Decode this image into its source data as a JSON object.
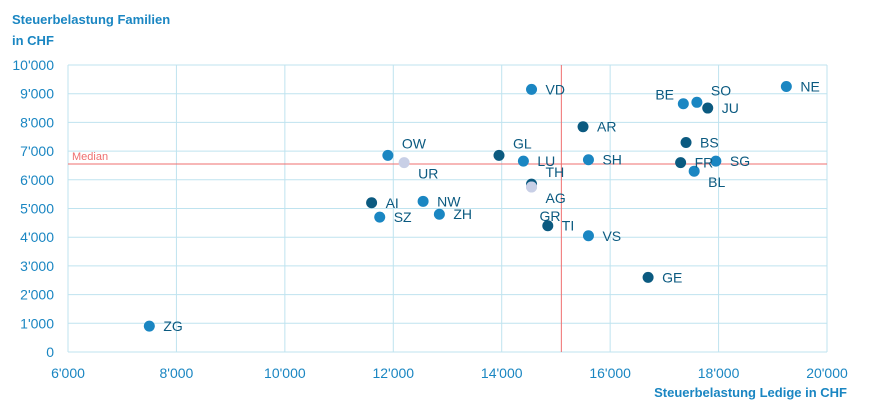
{
  "chart_data": {
    "type": "scatter",
    "title": "",
    "ylabel_lines": [
      "Steuerbelastung Familien",
      "in CHF"
    ],
    "xlabel": "Steuerbelastung Ledige in CHF",
    "xlim": [
      6000,
      20000
    ],
    "ylim": [
      0,
      10000
    ],
    "x_ticks": [
      {
        "value": 6000,
        "label": "6'000"
      },
      {
        "value": 8000,
        "label": "8'000"
      },
      {
        "value": 10000,
        "label": "10'000"
      },
      {
        "value": 12000,
        "label": "12'000"
      },
      {
        "value": 14000,
        "label": "14'000"
      },
      {
        "value": 16000,
        "label": "16'000"
      },
      {
        "value": 18000,
        "label": "18'000"
      },
      {
        "value": 20000,
        "label": "20'000"
      }
    ],
    "y_ticks": [
      {
        "value": 0,
        "label": "0"
      },
      {
        "value": 1000,
        "label": "1'000"
      },
      {
        "value": 2000,
        "label": "2'000"
      },
      {
        "value": 3000,
        "label": "3'000"
      },
      {
        "value": 4000,
        "label": "4'000"
      },
      {
        "value": 5000,
        "label": "5'000"
      },
      {
        "value": 6000,
        "label": "6'000"
      },
      {
        "value": 7000,
        "label": "7'000"
      },
      {
        "value": 8000,
        "label": "8'000"
      },
      {
        "value": 9000,
        "label": "9'000"
      },
      {
        "value": 10000,
        "label": "10'000"
      }
    ],
    "median": {
      "x": 15100,
      "y": 6550,
      "label": "Median"
    },
    "grid": true,
    "colors": {
      "dark": "#0b5a80",
      "mid": "#1a86c2",
      "light": "#c8cfe6",
      "grid": "#bfe3ef",
      "median": "#ef6f6f",
      "axis_text": "#1a86c2"
    },
    "points": [
      {
        "label": "ZG",
        "x": 7500,
        "y": 900,
        "shade": "mid",
        "pos": "right"
      },
      {
        "label": "AI",
        "x": 11600,
        "y": 5200,
        "shade": "dark",
        "pos": "right"
      },
      {
        "label": "SZ",
        "x": 11750,
        "y": 4700,
        "shade": "mid",
        "pos": "right"
      },
      {
        "label": "OW",
        "x": 11900,
        "y": 6850,
        "shade": "mid",
        "pos": "upright"
      },
      {
        "label": "UR",
        "x": 12200,
        "y": 6600,
        "shade": "light",
        "pos": "downright"
      },
      {
        "label": "NW",
        "x": 12550,
        "y": 5250,
        "shade": "mid",
        "pos": "right"
      },
      {
        "label": "ZH",
        "x": 12850,
        "y": 4800,
        "shade": "mid",
        "pos": "right"
      },
      {
        "label": "GL",
        "x": 13950,
        "y": 6850,
        "shade": "dark",
        "pos": "upright"
      },
      {
        "label": "LU",
        "x": 14400,
        "y": 6650,
        "shade": "mid",
        "pos": "right"
      },
      {
        "label": "VD",
        "x": 14550,
        "y": 9150,
        "shade": "mid",
        "pos": "right"
      },
      {
        "label": "TH",
        "x": 14550,
        "y": 5850,
        "shade": "dark",
        "pos": "upright"
      },
      {
        "label": "AG",
        "x": 14550,
        "y": 5750,
        "shade": "light",
        "pos": "downright"
      },
      {
        "label": "GR",
        "x": 14550,
        "y": 5750,
        "shade": "light",
        "pos": "down2right"
      },
      {
        "label": "TI",
        "x": 14850,
        "y": 4400,
        "shade": "dark",
        "pos": "right"
      },
      {
        "label": "AR",
        "x": 15500,
        "y": 7850,
        "shade": "dark",
        "pos": "right"
      },
      {
        "label": "SH",
        "x": 15600,
        "y": 6700,
        "shade": "mid",
        "pos": "right"
      },
      {
        "label": "VS",
        "x": 15600,
        "y": 4050,
        "shade": "mid",
        "pos": "right"
      },
      {
        "label": "GE",
        "x": 16700,
        "y": 2600,
        "shade": "dark",
        "pos": "right"
      },
      {
        "label": "BE",
        "x": 17350,
        "y": 8650,
        "shade": "mid",
        "pos": "upleft"
      },
      {
        "label": "FR",
        "x": 17300,
        "y": 6600,
        "shade": "dark",
        "pos": "right"
      },
      {
        "label": "BS",
        "x": 17400,
        "y": 7300,
        "shade": "dark",
        "pos": "right"
      },
      {
        "label": "SO",
        "x": 17600,
        "y": 8700,
        "shade": "mid",
        "pos": "upright"
      },
      {
        "label": "BL",
        "x": 17550,
        "y": 6300,
        "shade": "mid",
        "pos": "downright"
      },
      {
        "label": "JU",
        "x": 17800,
        "y": 8500,
        "shade": "dark",
        "pos": "right"
      },
      {
        "label": "SG",
        "x": 17950,
        "y": 6650,
        "shade": "mid",
        "pos": "right"
      },
      {
        "label": "NE",
        "x": 19250,
        "y": 9250,
        "shade": "mid",
        "pos": "right"
      }
    ]
  }
}
